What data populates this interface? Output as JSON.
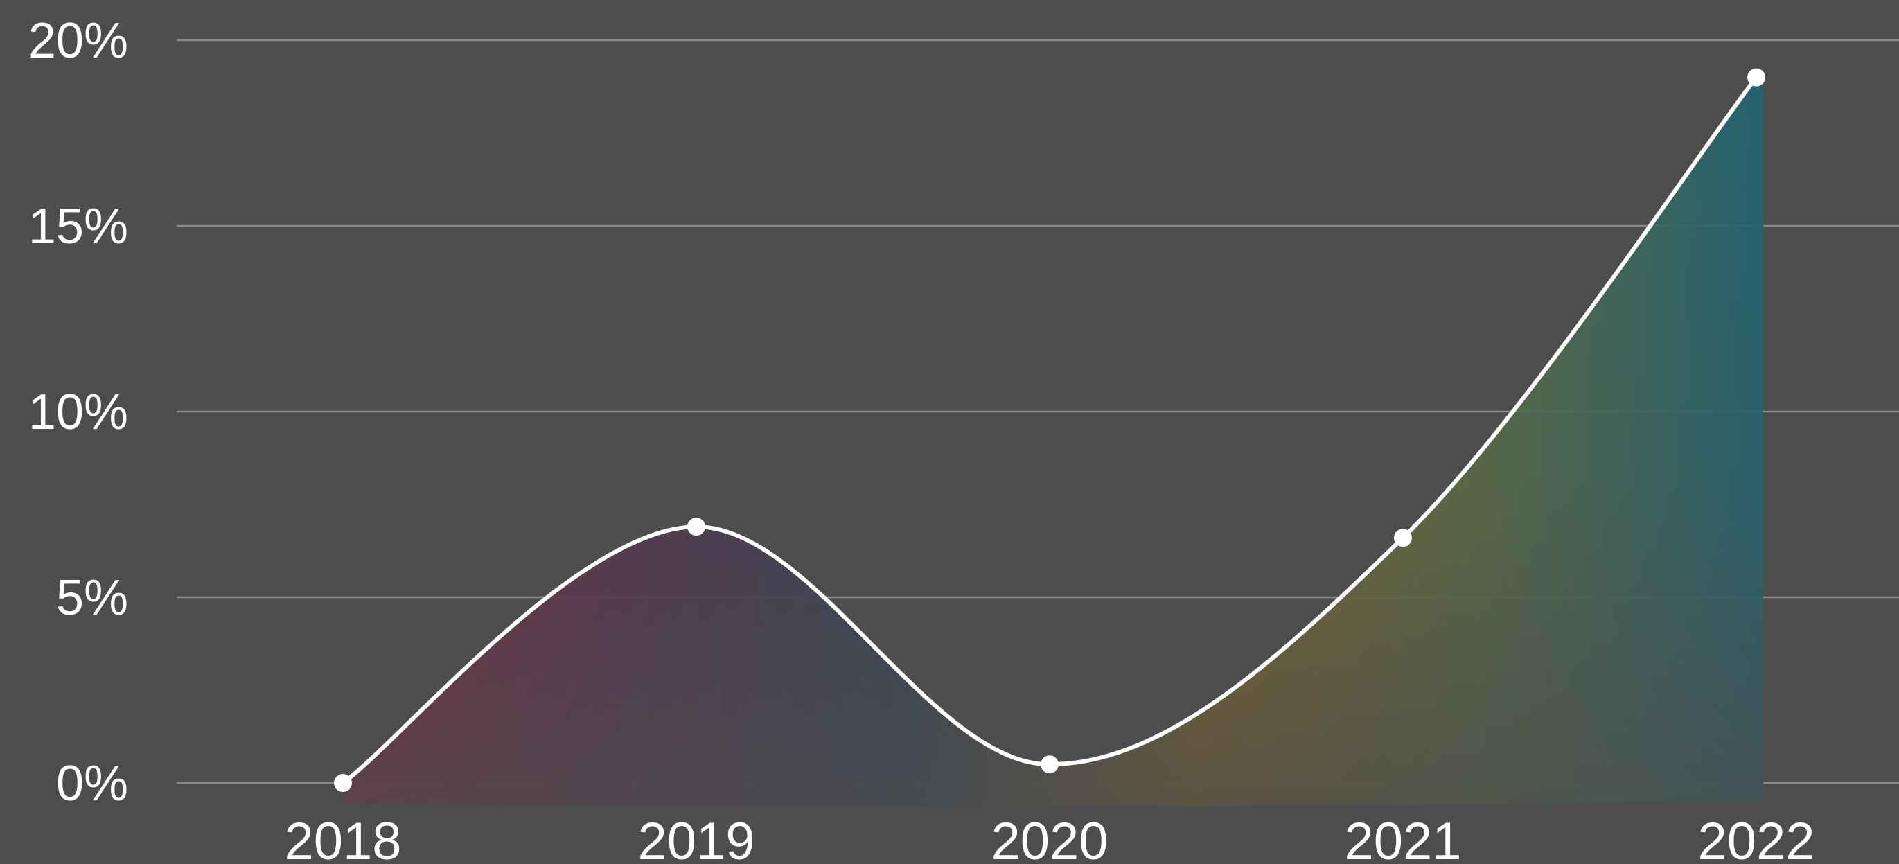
{
  "chart_data": {
    "type": "area",
    "title": "",
    "xlabel": "",
    "ylabel": "",
    "categories": [
      "2018",
      "2019",
      "2020",
      "2021",
      "2022"
    ],
    "series": [
      {
        "values": [
          0,
          6.9,
          0.5,
          6.6,
          19.0
        ]
      }
    ],
    "ylim": [
      0,
      20
    ],
    "yticks": [
      0,
      5,
      10,
      15,
      20
    ],
    "ytick_labels": [
      "0%",
      "5%",
      "10%",
      "15%",
      "20%"
    ],
    "grid": true,
    "legend": "none",
    "colors": {
      "background": "#4d4d4d",
      "line": "#ffffff",
      "grid": "#8a8a8a",
      "text": "#ffffff",
      "fill_stops": [
        "#8e1e3c",
        "#56304f",
        "#2f4458",
        "#8c6a22",
        "#5b6e45",
        "#1f6474"
      ]
    }
  }
}
